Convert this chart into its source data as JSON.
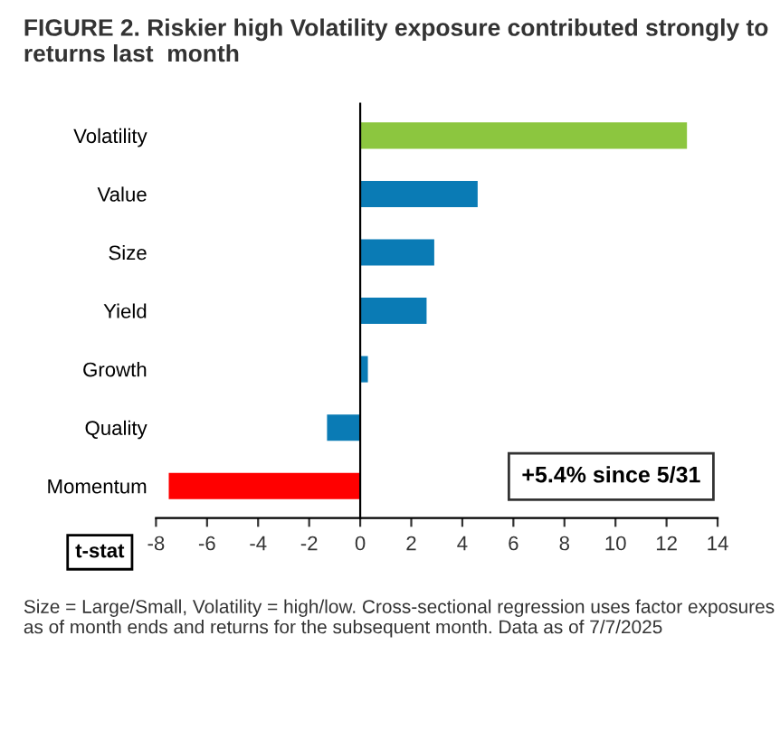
{
  "chart_data": {
    "type": "bar",
    "orientation": "horizontal",
    "title": "FIGURE 2. Riskier high Volatility exposure contributed strongly to returns last  month",
    "xlabel": "t-stat",
    "categories": [
      "Volatility",
      "Value",
      "Size",
      "Yield",
      "Growth",
      "Quality",
      "Momentum"
    ],
    "values": [
      12.8,
      4.6,
      2.9,
      2.6,
      0.3,
      -1.3,
      -7.5
    ],
    "colors": [
      "#8cc63f",
      "#0a7bb5",
      "#0a7bb5",
      "#0a7bb5",
      "#0a7bb5",
      "#0a7bb5",
      "#ff0000"
    ],
    "xlim": [
      -8,
      14
    ],
    "xticks": [
      -8,
      -6,
      -4,
      -2,
      0,
      2,
      4,
      6,
      8,
      10,
      12,
      14
    ],
    "legend": false,
    "annotations": [
      "+5.4% since 5/31",
      "Size = Large/Small, Volatility = high/low. Cross-sectional regression uses factor exposures as of month ends and returns for the subsequent month. Data as of 7/7/2025"
    ]
  }
}
